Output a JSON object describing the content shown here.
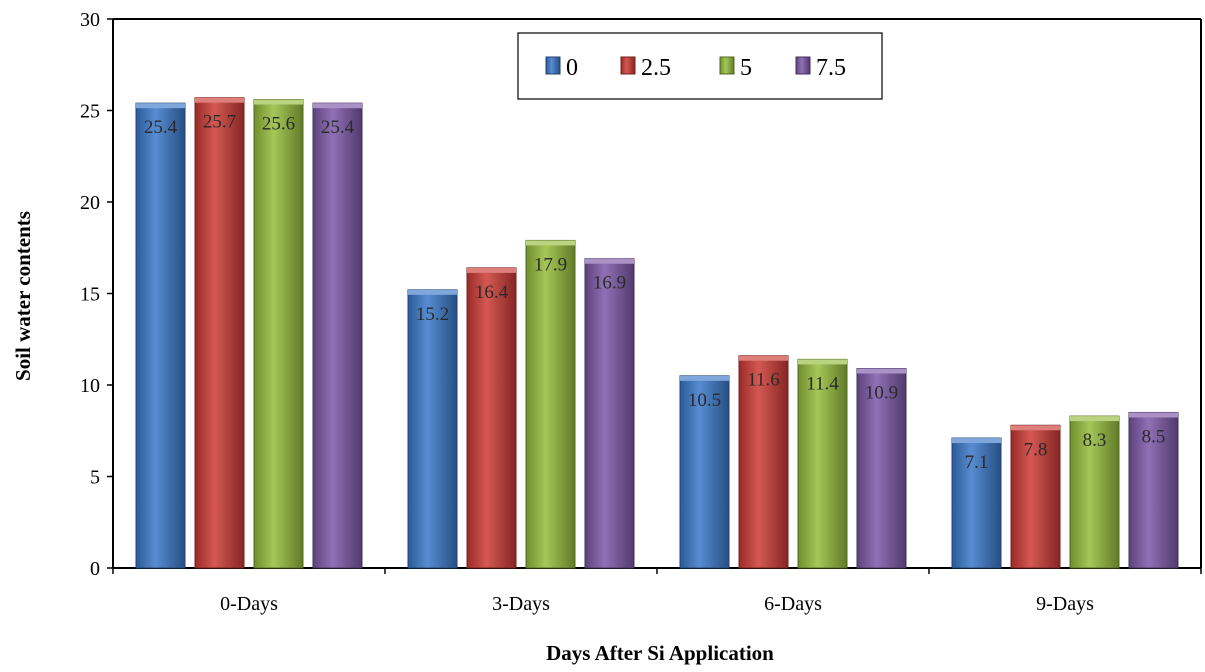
{
  "chart_data": {
    "type": "bar",
    "title": "",
    "xlabel": "Days After Si Application",
    "ylabel": "Soil water contents",
    "categories": [
      "0-Days",
      "3-Days",
      "6-Days",
      "9-Days"
    ],
    "ylim": [
      0,
      30
    ],
    "yticks": [
      "0",
      "5",
      "10",
      "15",
      "20",
      "25",
      "30"
    ],
    "legend_position": "top-center",
    "grid": false,
    "series": [
      {
        "name": "0",
        "color": "#3a78c9",
        "values": [
          25.4,
          15.2,
          10.5,
          7.1
        ],
        "labels": [
          "25.4",
          "15.2",
          "10.5",
          "7.1"
        ]
      },
      {
        "name": "2.5",
        "color": "#cc3a35",
        "values": [
          25.7,
          16.4,
          11.6,
          7.8
        ],
        "labels": [
          "25.7",
          "16.4",
          "11.6",
          "7.8"
        ]
      },
      {
        "name": "5",
        "color": "#94bd3c",
        "values": [
          25.6,
          17.9,
          11.4,
          8.3
        ],
        "labels": [
          "25.6",
          "17.9",
          "11.4",
          "8.3"
        ]
      },
      {
        "name": "7.5",
        "color": "#7c58a8",
        "values": [
          25.4,
          16.9,
          10.9,
          8.5
        ],
        "labels": [
          "25.4",
          "16.9",
          "10.9",
          "8.5"
        ]
      }
    ]
  }
}
